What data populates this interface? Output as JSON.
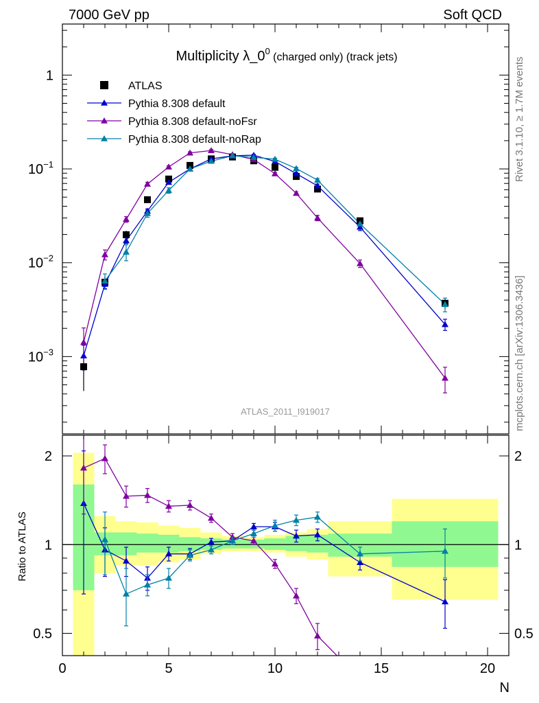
{
  "header": {
    "left": "7000 GeV pp",
    "right": "Soft QCD",
    "side_top": "Rivet 3.1.10, ≥ 1.7M events",
    "side_bottom": "mcplots.cern.ch [arXiv:1306.3436]"
  },
  "colors": {
    "atlas": "#000000",
    "default": "#0000cc",
    "noFsr": "#8000a0",
    "noRap": "#0080a8",
    "band_stat": "#90f890",
    "band_total": "#ffff90"
  },
  "chart_data": [
    {
      "type": "line",
      "title_main": "Multiplicity λ_0",
      "title_sup": "0",
      "title_tail": " (charged only) (track jets)",
      "watermark": "ATLAS_2011_I919017",
      "yscale": "log",
      "xlim": [
        0,
        21
      ],
      "ylim": [
        0.00015,
        3.5
      ],
      "yticks": [
        {
          "v": 0.001,
          "base": "10",
          "exp": "−3"
        },
        {
          "v": 0.01,
          "base": "10",
          "exp": "−2"
        },
        {
          "v": 0.1,
          "base": "10",
          "exp": "−1"
        },
        {
          "v": 1,
          "base": "1",
          "exp": ""
        }
      ],
      "legend_position": "top-left",
      "series": [
        {
          "name": "ATLAS",
          "marker": "square",
          "color_key": "atlas",
          "x": [
            1,
            2,
            3,
            4,
            5,
            6,
            7,
            8,
            9,
            10,
            11,
            12,
            14,
            18
          ],
          "y": [
            0.00078,
            0.0062,
            0.0199,
            0.047,
            0.078,
            0.109,
            0.128,
            0.134,
            0.122,
            0.104,
            0.083,
            0.061,
            0.028,
            0.0037
          ],
          "err": [
            0.00035,
            0.001,
            0.002,
            0.003,
            0.003,
            0.003,
            0.003,
            0.003,
            0.003,
            0.003,
            0.003,
            0.003,
            0.002,
            0.0005
          ]
        },
        {
          "name": "Pythia 8.308 default",
          "marker": "triangle",
          "color_key": "default",
          "x": [
            1,
            2,
            3,
            4,
            5,
            6,
            7,
            8,
            9,
            10,
            11,
            12,
            14,
            18
          ],
          "y": [
            0.00102,
            0.0059,
            0.0172,
            0.0355,
            0.072,
            0.1,
            0.128,
            0.138,
            0.14,
            0.12,
            0.089,
            0.066,
            0.024,
            0.0022
          ],
          "err": [
            0.0003,
            0.0006,
            0.0012,
            0.002,
            0.003,
            0.003,
            0.003,
            0.003,
            0.003,
            0.003,
            0.003,
            0.003,
            0.002,
            0.0003
          ]
        },
        {
          "name": "Pythia 8.308 default-noFsr",
          "marker": "triangle",
          "color_key": "noFsr",
          "x": [
            1,
            2,
            3,
            4,
            5,
            6,
            7,
            8,
            9,
            10,
            11,
            12,
            14,
            18
          ],
          "y": [
            0.00142,
            0.0122,
            0.029,
            0.069,
            0.105,
            0.148,
            0.157,
            0.142,
            0.126,
            0.089,
            0.055,
            0.03,
            0.0098,
            0.00059
          ],
          "err": [
            0.0006,
            0.0015,
            0.002,
            0.003,
            0.003,
            0.004,
            0.004,
            0.003,
            0.003,
            0.003,
            0.002,
            0.002,
            0.0009,
            0.00018
          ]
        },
        {
          "name": "Pythia 8.308 default-noRap",
          "marker": "triangle",
          "color_key": "noRap",
          "x": [
            1,
            2,
            3,
            4,
            5,
            6,
            7,
            8,
            9,
            10,
            11,
            12,
            14,
            18
          ],
          "y": [
            null,
            0.0064,
            0.013,
            0.0335,
            0.059,
            0.1,
            0.121,
            0.138,
            0.133,
            0.127,
            0.101,
            0.076,
            0.026,
            0.0036
          ],
          "err": [
            null,
            0.0012,
            0.0025,
            0.003,
            0.004,
            0.003,
            0.003,
            0.003,
            0.003,
            0.003,
            0.003,
            0.003,
            0.002,
            0.0006
          ]
        }
      ]
    },
    {
      "type": "line",
      "ylabel": "Ratio to ATLAS",
      "xlabel": "N",
      "yscale": "log",
      "xlim": [
        0,
        21
      ],
      "ylim": [
        0.42,
        2.35
      ],
      "xticks": [
        0,
        5,
        10,
        15,
        20
      ],
      "yticks": [
        0.5,
        1,
        2
      ],
      "reference_line": 1,
      "bands": {
        "edges": [
          [
            0.5,
            1.5
          ],
          [
            1.5,
            2.5
          ],
          [
            2.5,
            3.5
          ],
          [
            3.5,
            4.5
          ],
          [
            4.5,
            5.5
          ],
          [
            5.5,
            6.5
          ],
          [
            6.5,
            7.5
          ],
          [
            7.5,
            8.5
          ],
          [
            8.5,
            9.5
          ],
          [
            9.5,
            10.5
          ],
          [
            10.5,
            11.5
          ],
          [
            11.5,
            12.5
          ],
          [
            12.5,
            15.5
          ],
          [
            15.5,
            20.5
          ]
        ],
        "stat": [
          [
            0.7,
            1.6
          ],
          [
            0.92,
            1.1
          ],
          [
            0.92,
            1.1
          ],
          [
            0.94,
            1.09
          ],
          [
            0.94,
            1.08
          ],
          [
            0.95,
            1.06
          ],
          [
            0.96,
            1.05
          ],
          [
            0.97,
            1.04
          ],
          [
            0.97,
            1.04
          ],
          [
            0.96,
            1.05
          ],
          [
            0.95,
            1.07
          ],
          [
            0.94,
            1.08
          ],
          [
            0.91,
            1.09
          ],
          [
            0.84,
            1.2
          ]
        ],
        "total": [
          [
            0.3,
            2.05
          ],
          [
            0.8,
            1.25
          ],
          [
            0.85,
            1.2
          ],
          [
            0.85,
            1.19
          ],
          [
            0.87,
            1.16
          ],
          [
            0.89,
            1.14
          ],
          [
            0.93,
            1.1
          ],
          [
            0.95,
            1.07
          ],
          [
            0.95,
            1.06
          ],
          [
            0.94,
            1.08
          ],
          [
            0.91,
            1.1
          ],
          [
            0.89,
            1.13
          ],
          [
            0.78,
            1.2
          ],
          [
            0.65,
            1.43
          ]
        ]
      },
      "series": [
        {
          "name": "Pythia 8.308 default",
          "color_key": "default",
          "x": [
            1,
            2,
            3,
            4,
            5,
            6,
            7,
            8,
            9,
            10,
            11,
            12,
            14,
            18
          ],
          "y": [
            1.38,
            0.96,
            0.88,
            0.77,
            0.93,
            0.93,
            1.02,
            1.03,
            1.15,
            1.15,
            1.07,
            1.08,
            0.87,
            0.64
          ],
          "err": [
            0.7,
            0.18,
            0.1,
            0.07,
            0.05,
            0.04,
            0.03,
            0.03,
            0.03,
            0.04,
            0.05,
            0.05,
            0.05,
            0.12
          ]
        },
        {
          "name": "Pythia 8.308 default-noFsr",
          "color_key": "noFsr",
          "x": [
            1,
            2,
            3,
            4,
            5,
            6,
            7,
            8,
            9,
            10,
            11,
            12,
            14
          ],
          "y": [
            1.82,
            1.96,
            1.46,
            1.47,
            1.35,
            1.36,
            1.23,
            1.06,
            1.03,
            0.86,
            0.67,
            0.49,
            0.35
          ],
          "err": [
            0.55,
            0.22,
            0.12,
            0.08,
            0.06,
            0.05,
            0.04,
            0.03,
            0.03,
            0.03,
            0.04,
            0.05,
            0.04
          ]
        },
        {
          "name": "Pythia 8.308 default-noRap",
          "color_key": "noRap",
          "x": [
            2,
            3,
            4,
            5,
            6,
            7,
            8,
            9,
            10,
            11,
            12,
            14,
            18
          ],
          "y": [
            1.04,
            0.68,
            0.73,
            0.77,
            0.92,
            0.96,
            1.03,
            1.09,
            1.16,
            1.21,
            1.24,
            0.93,
            0.95
          ],
          "err": [
            0.25,
            0.15,
            0.06,
            0.06,
            0.04,
            0.03,
            0.03,
            0.03,
            0.05,
            0.05,
            0.05,
            0.05,
            0.18
          ]
        }
      ]
    }
  ]
}
